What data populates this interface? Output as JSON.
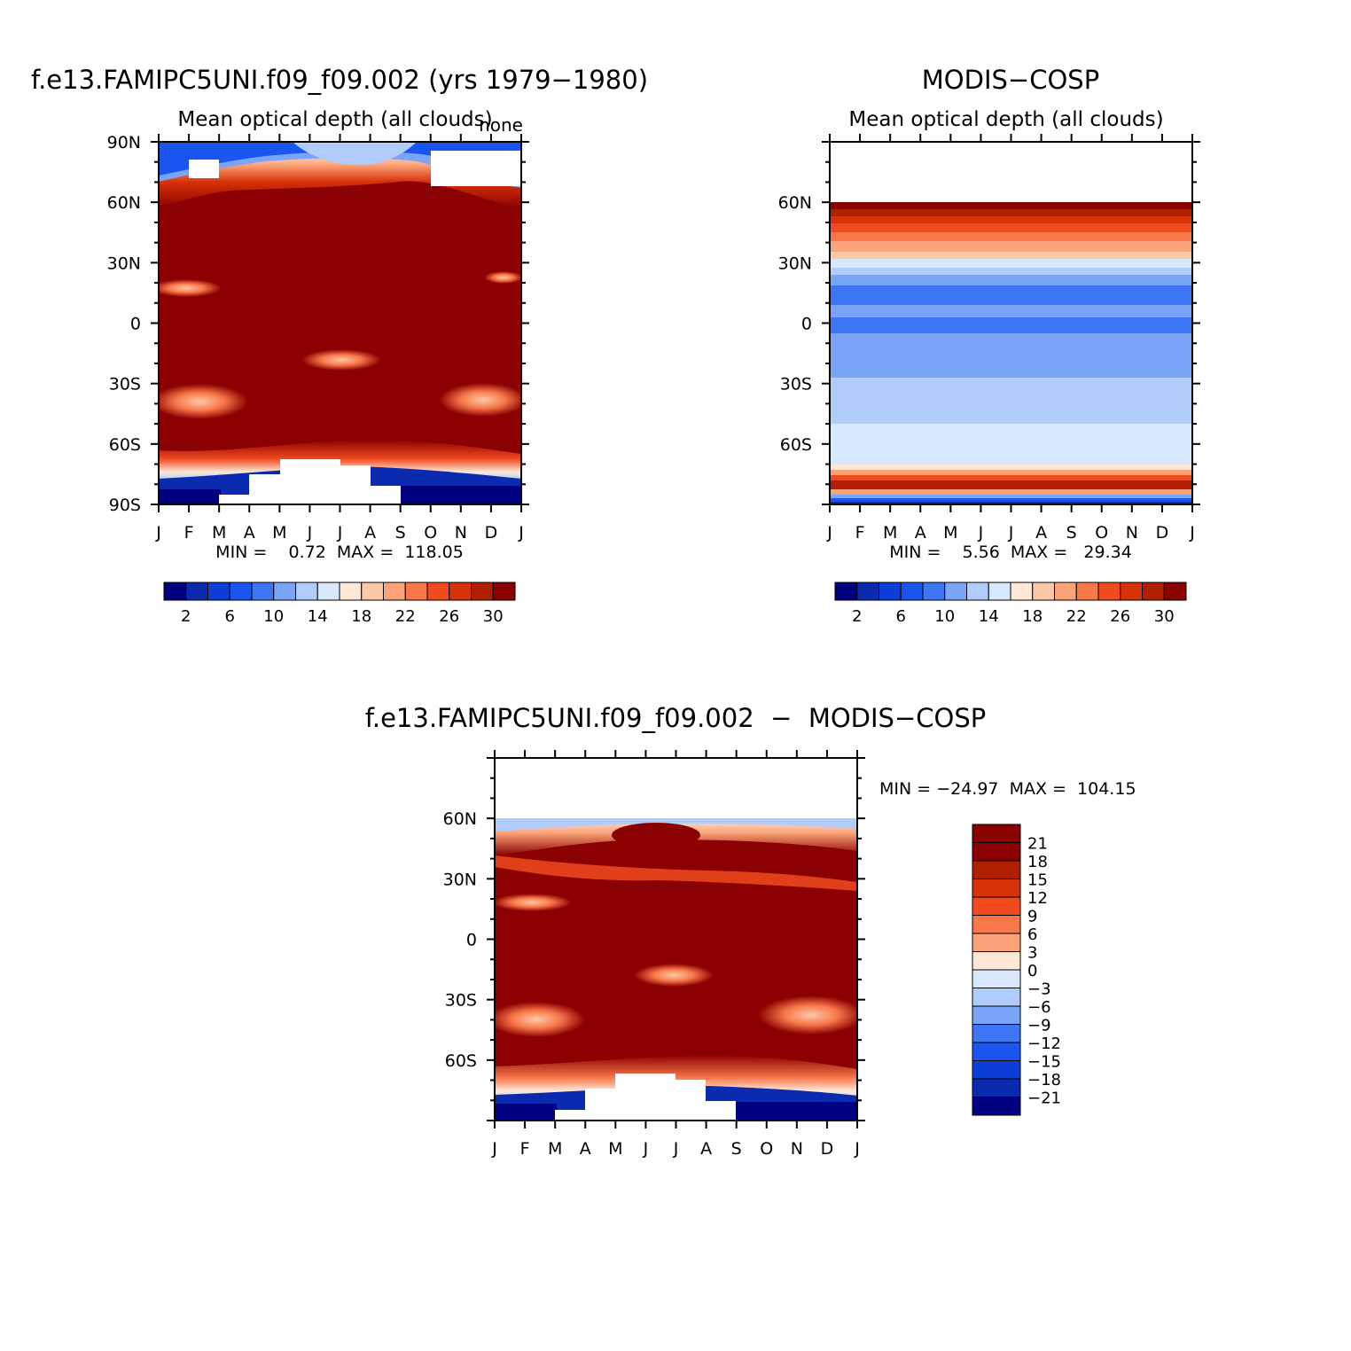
{
  "chart_data": [
    {
      "type": "heatmap",
      "title": "f.e13.FAMIPC5UNI.f09_f09.002 (yrs 1979−1980)",
      "subtitle": "Mean optical depth (all clouds)",
      "corner_label": "none",
      "x_ticks": [
        "J",
        "F",
        "M",
        "A",
        "M",
        "J",
        "J",
        "A",
        "S",
        "O",
        "N",
        "D",
        "J"
      ],
      "y_ticks": [
        "90N",
        "60N",
        "30N",
        "0",
        "30S",
        "60S",
        "90S"
      ],
      "ylim": [
        -90,
        90
      ],
      "stats": "MIN =    0.72  MAX =  118.05",
      "colorbar": {
        "ticks": [
          "2",
          "6",
          "10",
          "14",
          "18",
          "22",
          "26",
          "30"
        ],
        "placement": "bottom"
      }
    },
    {
      "type": "heatmap",
      "title": "MODIS−COSP",
      "subtitle": "Mean optical depth (all clouds)",
      "x_ticks": [
        "J",
        "F",
        "M",
        "A",
        "M",
        "J",
        "J",
        "A",
        "S",
        "O",
        "N",
        "D",
        "J"
      ],
      "y_ticks": [
        "60N",
        "30N",
        "0",
        "30S",
        "60S"
      ],
      "ylim": [
        -90,
        90
      ],
      "stats": "MIN =    5.56  MAX =   29.34",
      "colorbar": {
        "ticks": [
          "2",
          "6",
          "10",
          "14",
          "18",
          "22",
          "26",
          "30"
        ],
        "placement": "bottom"
      }
    },
    {
      "type": "heatmap",
      "title": "f.e13.FAMIPC5UNI.f09_f09.002  −  MODIS−COSP",
      "x_ticks": [
        "J",
        "F",
        "M",
        "A",
        "M",
        "J",
        "J",
        "A",
        "S",
        "O",
        "N",
        "D",
        "J"
      ],
      "y_ticks": [
        "60N",
        "30N",
        "0",
        "30S",
        "60S"
      ],
      "ylim": [
        -90,
        90
      ],
      "stats": "MIN = −24.97  MAX =  104.15",
      "colorbar": {
        "ticks": [
          "21",
          "18",
          "15",
          "12",
          "9",
          "6",
          "3",
          "0",
          "−3",
          "−6",
          "−9",
          "−12",
          "−15",
          "−18",
          "−21"
        ],
        "placement": "right"
      }
    }
  ],
  "palettes": {
    "sequential": [
      "#000080",
      "#0a2bb0",
      "#0d3ed8",
      "#1a55f0",
      "#3d75f5",
      "#7aa4f8",
      "#b0ccfa",
      "#d8e8fc",
      "#fde8d8",
      "#fcc8a8",
      "#fba278",
      "#f8784a",
      "#f04a1e",
      "#d83208",
      "#b02000",
      "#8b0000"
    ],
    "difference": [
      "#8b0000",
      "#b02000",
      "#d83208",
      "#f04a1e",
      "#f8784a",
      "#fba278",
      "#fde8d8",
      "#d8e8fc",
      "#b0ccfa",
      "#7aa4f8",
      "#3d75f5",
      "#1a55f0",
      "#0d3ed8",
      "#0a2bb0",
      "#000080"
    ]
  }
}
